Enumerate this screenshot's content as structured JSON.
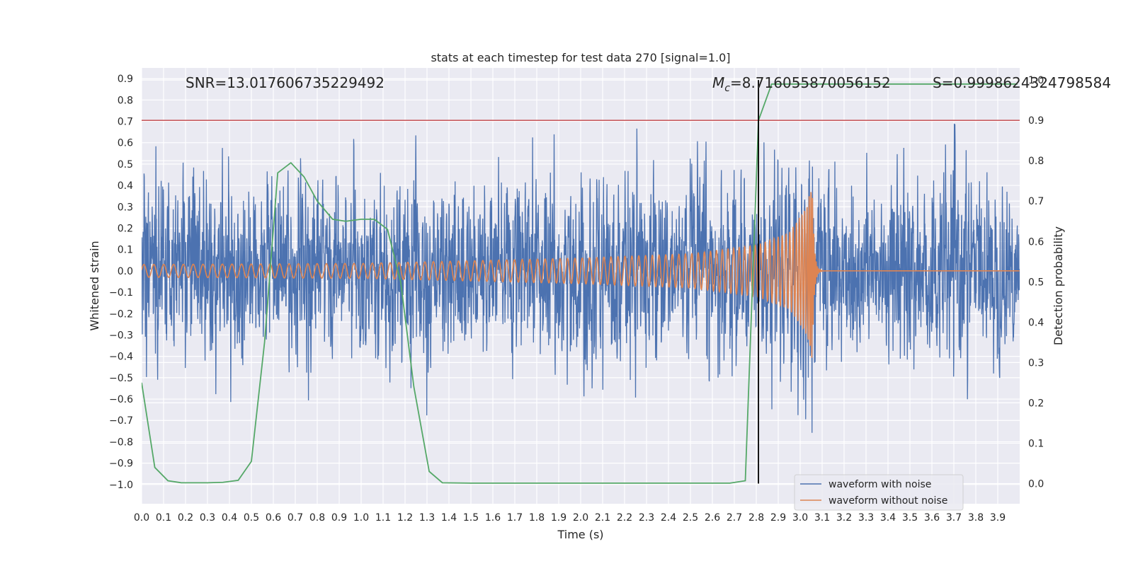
{
  "chart_data": {
    "type": "line",
    "title": "stats at each timestep for test data 270 [signal=1.0]",
    "xlabel": "Time (s)",
    "ylabel": "Whitened strain",
    "y2label": "Detection probability",
    "xlim": [
      0.0,
      4.0
    ],
    "ylim": [
      -1.09,
      0.95
    ],
    "y2lim": [
      -0.05,
      1.03
    ],
    "x_ticks": [
      "0.0",
      "0.1",
      "0.2",
      "0.3",
      "0.4",
      "0.5",
      "0.6",
      "0.7",
      "0.8",
      "0.9",
      "1.0",
      "1.1",
      "1.2",
      "1.3",
      "1.4",
      "1.5",
      "1.6",
      "1.7",
      "1.8",
      "1.9",
      "2.0",
      "2.1",
      "2.2",
      "2.3",
      "2.4",
      "2.5",
      "2.6",
      "2.7",
      "2.8",
      "2.9",
      "3.0",
      "3.1",
      "3.2",
      "3.3",
      "3.4",
      "3.5",
      "3.6",
      "3.7",
      "3.8",
      "3.9"
    ],
    "y_ticks": [
      "0.9",
      "0.8",
      "0.7",
      "0.6",
      "0.5",
      "0.4",
      "0.3",
      "0.2",
      "0.1",
      "0.0",
      "−0.1",
      "−0.2",
      "−0.3",
      "−0.4",
      "−0.5",
      "−0.6",
      "−0.7",
      "−0.8",
      "−0.9",
      "−1.0"
    ],
    "y2_ticks": [
      "1.0",
      "0.9",
      "0.8",
      "0.7",
      "0.6",
      "0.5",
      "0.4",
      "0.3",
      "0.2",
      "0.1",
      "0.0"
    ],
    "grid": true,
    "legend_position": "lower-right",
    "annotations": {
      "snr": "SNR=13.017606735229492",
      "mc_symbol": "M",
      "mc_sub": "c",
      "mc_value": "=8.716055870056152",
      "s": "S=0.9998624324798584"
    },
    "threshold": 0.9,
    "event_time": 2.81,
    "series": [
      {
        "name": "waveform with noise",
        "color": "#4c72b0",
        "noise_std": 0.22,
        "seed": 270
      },
      {
        "name": "waveform without noise",
        "color": "#dd8452",
        "merger_time": 3.055,
        "chirp": [
          {
            "t": 0.0,
            "amp": 0.03,
            "f": 22
          },
          {
            "t": 1.0,
            "amp": 0.035,
            "f": 24
          },
          {
            "t": 2.0,
            "amp": 0.06,
            "f": 30
          },
          {
            "t": 2.5,
            "amp": 0.08,
            "f": 34
          },
          {
            "t": 2.8,
            "amp": 0.12,
            "f": 42
          },
          {
            "t": 2.95,
            "amp": 0.18,
            "f": 60
          },
          {
            "t": 3.03,
            "amp": 0.3,
            "f": 90
          },
          {
            "t": 3.055,
            "amp": 0.42,
            "f": 140
          }
        ]
      },
      {
        "name": "detection probability",
        "color": "#55a868",
        "axis": "right",
        "x": [
          0.0,
          0.06,
          0.12,
          0.18,
          0.3,
          0.37,
          0.44,
          0.5,
          0.56,
          0.62,
          0.68,
          0.74,
          0.8,
          0.87,
          0.93,
          1.0,
          1.06,
          1.12,
          1.18,
          1.24,
          1.31,
          1.37,
          1.5,
          2.0,
          2.5,
          2.68,
          2.75,
          2.81,
          2.87,
          3.0,
          3.5,
          3.99
        ],
        "y": [
          0.25,
          0.04,
          0.007,
          0.002,
          0.002,
          0.003,
          0.008,
          0.055,
          0.35,
          0.77,
          0.795,
          0.76,
          0.7,
          0.655,
          0.65,
          0.655,
          0.655,
          0.63,
          0.5,
          0.24,
          0.03,
          0.002,
          0.001,
          0.001,
          0.001,
          0.001,
          0.007,
          0.9,
          0.99,
          0.99,
          0.99,
          0.99
        ]
      }
    ]
  }
}
